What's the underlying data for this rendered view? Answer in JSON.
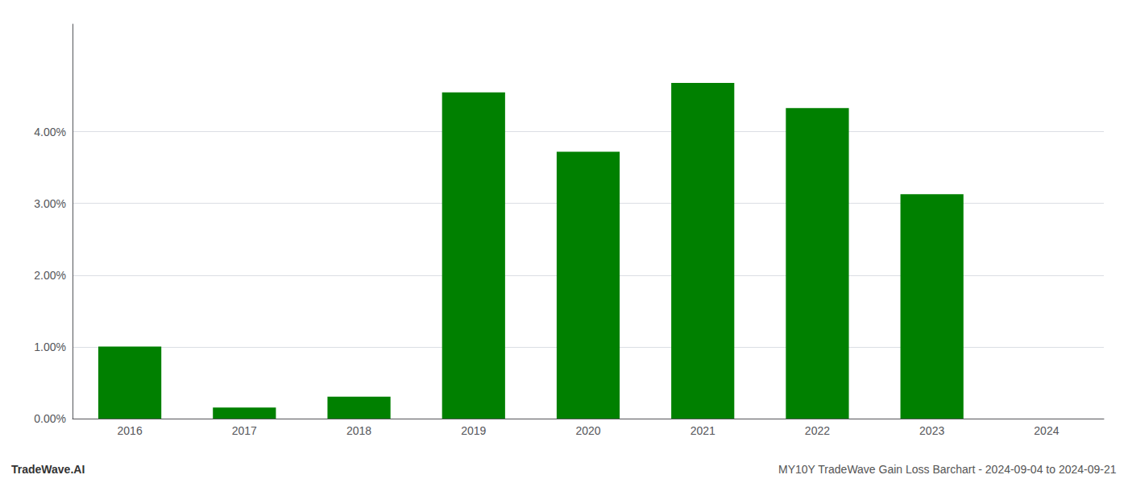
{
  "chart_data": {
    "type": "bar",
    "categories": [
      "2016",
      "2017",
      "2018",
      "2019",
      "2020",
      "2021",
      "2022",
      "2023",
      "2024"
    ],
    "values": [
      1.005,
      0.155,
      0.305,
      4.55,
      3.72,
      4.68,
      4.33,
      3.13,
      0.0
    ],
    "color": "#008000",
    "ylim": [
      0,
      5.5
    ],
    "yticks": [
      {
        "value": 0.0,
        "label": "0.00%"
      },
      {
        "value": 1.0,
        "label": "1.00%"
      },
      {
        "value": 2.0,
        "label": "2.00%"
      },
      {
        "value": 3.0,
        "label": "3.00%"
      },
      {
        "value": 4.0,
        "label": "4.00%"
      }
    ],
    "grid": true,
    "annotations": [
      "TradeWave.AI",
      "MY10Y TradeWave Gain Loss Barchart - 2024-09-04 to 2024-09-21"
    ]
  }
}
